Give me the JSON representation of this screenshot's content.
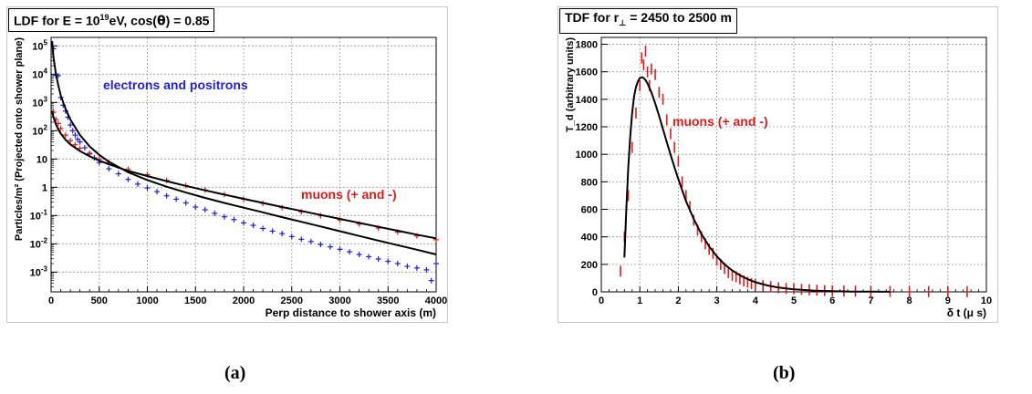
{
  "captions": {
    "a": "(a)",
    "b": "(b)"
  },
  "colors": {
    "electrons": "#1f1fd6",
    "muons": "#e01a1a",
    "fit": "#000000",
    "grid": "#9a9a9a"
  },
  "chart_data": [
    {
      "type": "scatter",
      "title_parts": {
        "pre": "LDF for E = 10",
        "sup": "19",
        "mid": "eV, cos(",
        "theta": "θ",
        "post": ") = 0.85"
      },
      "xlabel": "Perp distance to shower axis (m)",
      "ylabel": "Particles/m² (Projected onto shower plane)",
      "xlim": [
        0,
        4000
      ],
      "ylim": [
        0.0002,
        200000
      ],
      "yscale": "log",
      "grid": true,
      "xticks": [
        0,
        500,
        1000,
        1500,
        2000,
        2500,
        3000,
        3500,
        4000
      ],
      "yticks": [
        {
          "v": 100000,
          "base": "10",
          "exp": "5"
        },
        {
          "v": 10000,
          "base": "10",
          "exp": "4"
        },
        {
          "v": 1000,
          "base": "10",
          "exp": "3"
        },
        {
          "v": 100,
          "base": "10",
          "exp": "2"
        },
        {
          "v": 10,
          "base": "10",
          "exp": ""
        },
        {
          "v": 1,
          "base": "1",
          "exp": ""
        },
        {
          "v": 0.1,
          "base": "10",
          "exp": "-1"
        },
        {
          "v": 0.01,
          "base": "10",
          "exp": "-2"
        },
        {
          "v": 0.001,
          "base": "10",
          "exp": "-3"
        }
      ],
      "annotations": [
        {
          "text": "electrons and positrons",
          "color": "#1f1fd6"
        },
        {
          "text": "muons (+ and -)",
          "color": "#e01a1a"
        }
      ],
      "series": [
        {
          "name": "electrons and positrons",
          "color": "#1f1fd6",
          "x": [
            25,
            50,
            75,
            100,
            125,
            150,
            175,
            200,
            225,
            250,
            275,
            300,
            350,
            400,
            450,
            500,
            600,
            700,
            800,
            900,
            1000,
            1100,
            1200,
            1300,
            1400,
            1500,
            1600,
            1700,
            1800,
            1900,
            2000,
            2100,
            2200,
            2300,
            2400,
            2500,
            2600,
            2700,
            2800,
            2900,
            3000,
            3100,
            3200,
            3300,
            3400,
            3500,
            3600,
            3700,
            3800,
            3900,
            3950,
            4000
          ],
          "y": [
            80000,
            9000,
            9000,
            1500,
            800,
            500,
            300,
            160,
            100,
            70,
            50,
            40,
            25,
            16,
            11,
            7.5,
            4.5,
            3,
            1.9,
            1.3,
            0.95,
            0.7,
            0.5,
            0.38,
            0.28,
            0.2,
            0.16,
            0.12,
            0.09,
            0.072,
            0.055,
            0.045,
            0.035,
            0.028,
            0.023,
            0.018,
            0.0145,
            0.012,
            0.0095,
            0.0078,
            0.0064,
            0.0052,
            0.0042,
            0.0035,
            0.0029,
            0.0024,
            0.002,
            0.0016,
            0.0014,
            0.0012,
            0.0005,
            0.002
          ]
        },
        {
          "name": "muons (+ and -)",
          "color": "#e01a1a",
          "x": [
            25,
            50,
            75,
            100,
            150,
            200,
            250,
            300,
            400,
            500,
            600,
            800,
            1000,
            1200,
            1400,
            1600,
            1800,
            2000,
            2200,
            2400,
            2600,
            2800,
            3000,
            3200,
            3400,
            3600,
            3800,
            4000
          ],
          "y": [
            450,
            250,
            180,
            120,
            70,
            45,
            32,
            24,
            15,
            10,
            7.5,
            4.3,
            2.8,
            1.75,
            1.15,
            0.8,
            0.55,
            0.38,
            0.27,
            0.19,
            0.135,
            0.098,
            0.07,
            0.05,
            0.036,
            0.026,
            0.019,
            0.014
          ]
        },
        {
          "name": "",
          "color": "#000000",
          "line": true,
          "x": [
            10,
            25,
            50,
            75,
            100,
            150,
            200,
            300,
            400,
            500,
            600,
            800,
            1000,
            1200,
            1400,
            1600,
            1800,
            2000,
            2200,
            2400,
            2600,
            2800,
            3000,
            3200,
            3400,
            3600,
            3800,
            4000
          ],
          "y": [
            150000,
            40000,
            10000,
            4000,
            1800,
            600,
            250,
            70,
            28,
            14,
            8,
            3.4,
            1.8,
            1.05,
            0.65,
            0.42,
            0.28,
            0.19,
            0.13,
            0.088,
            0.06,
            0.041,
            0.028,
            0.019,
            0.013,
            0.009,
            0.0062,
            0.0042
          ]
        },
        {
          "name": "",
          "color": "#000000",
          "line": true,
          "x": [
            10,
            25,
            50,
            75,
            100,
            150,
            200,
            300,
            400,
            500,
            600,
            800,
            1000,
            1200,
            1400,
            1600,
            1800,
            2000,
            2200,
            2400,
            2600,
            2800,
            3000,
            3200,
            3400,
            3600,
            3800,
            4000
          ],
          "y": [
            500,
            300,
            170,
            110,
            80,
            48,
            33,
            19,
            12.5,
            8.8,
            6.5,
            3.8,
            2.5,
            1.65,
            1.12,
            0.78,
            0.55,
            0.39,
            0.28,
            0.2,
            0.145,
            0.105,
            0.076,
            0.055,
            0.04,
            0.029,
            0.021,
            0.0155
          ]
        }
      ]
    },
    {
      "type": "scatter",
      "title_parts": {
        "pre": "TDF for r",
        "sub": "⊥",
        "post": " = 2450 to 2500 m"
      },
      "xlabel": "δ t (μ s)",
      "ylabel": "T_d (arbitrary units)",
      "xlim": [
        0,
        10
      ],
      "ylim": [
        0,
        1850
      ],
      "grid": true,
      "xticks": [
        0,
        1,
        2,
        3,
        4,
        5,
        6,
        7,
        8,
        9,
        10
      ],
      "yticks": [
        0,
        200,
        400,
        600,
        800,
        1000,
        1200,
        1400,
        1600,
        1800
      ],
      "annotations": [
        {
          "text": "muons (+ and -)",
          "color": "#e01a1a"
        }
      ],
      "series": [
        {
          "name": "muons (+ and -)",
          "color": "#e01a1a",
          "x": [
            0.5,
            0.6,
            0.7,
            0.8,
            0.9,
            1.0,
            1.05,
            1.1,
            1.15,
            1.2,
            1.25,
            1.3,
            1.4,
            1.5,
            1.6,
            1.7,
            1.8,
            1.9,
            2.0,
            2.1,
            2.2,
            2.3,
            2.4,
            2.5,
            2.6,
            2.7,
            2.8,
            2.9,
            3.0,
            3.1,
            3.2,
            3.3,
            3.4,
            3.5,
            3.6,
            3.7,
            3.8,
            3.9,
            4.0,
            4.2,
            4.4,
            4.6,
            4.8,
            5.0,
            5.2,
            5.4,
            5.6,
            5.8,
            6.0,
            6.3,
            6.6,
            7.0,
            7.5,
            8.0,
            8.5,
            9.0,
            9.5
          ],
          "y": [
            150,
            400,
            700,
            1050,
            1300,
            1500,
            1700,
            1650,
            1750,
            1600,
            1500,
            1620,
            1580,
            1450,
            1400,
            1250,
            1150,
            1050,
            950,
            800,
            700,
            620,
            520,
            450,
            400,
            350,
            310,
            280,
            230,
            200,
            170,
            140,
            120,
            110,
            95,
            80,
            70,
            60,
            55,
            45,
            38,
            30,
            25,
            22,
            18,
            15,
            12,
            10,
            8,
            6,
            5,
            4,
            3,
            2,
            2,
            1,
            1
          ]
        },
        {
          "name": "",
          "color": "#000000",
          "line": true,
          "x": [
            0.6,
            0.65,
            0.7,
            0.75,
            0.8,
            0.85,
            0.9,
            0.95,
            1.0,
            1.05,
            1.1,
            1.15,
            1.2,
            1.3,
            1.4,
            1.5,
            1.6,
            1.7,
            1.8,
            1.9,
            2.0,
            2.2,
            2.4,
            2.6,
            2.8,
            3.0,
            3.2,
            3.4,
            3.6,
            3.8,
            4.0,
            4.3,
            4.6,
            5.0,
            5.5,
            6.0,
            6.5,
            7.0,
            7.5
          ],
          "y": [
            250,
            600,
            900,
            1130,
            1300,
            1420,
            1490,
            1530,
            1555,
            1560,
            1555,
            1540,
            1515,
            1450,
            1370,
            1280,
            1185,
            1090,
            995,
            905,
            820,
            660,
            530,
            420,
            330,
            258,
            200,
            155,
            120,
            92,
            70,
            47,
            31,
            18,
            9,
            4.5,
            2.2,
            1.1,
            0.5
          ]
        }
      ]
    }
  ]
}
